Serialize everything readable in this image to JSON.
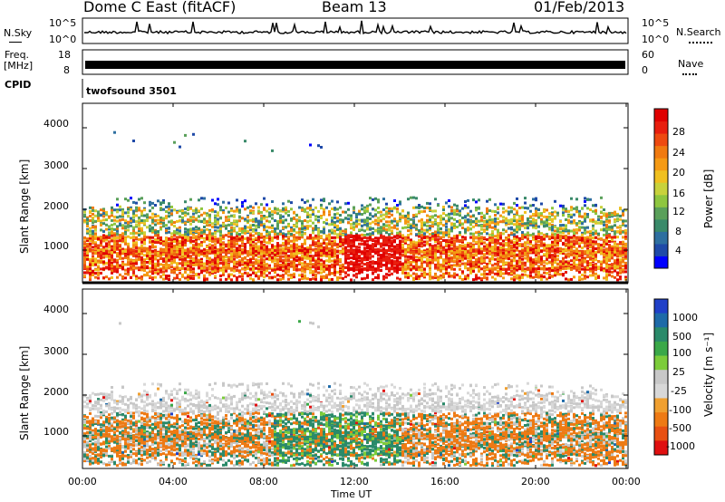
{
  "header": {
    "site": "Dome C East (fitACF)",
    "beam": "Beam 13",
    "date": "01/Feb/2013"
  },
  "strip_labels": {
    "nsky": "N.Sky",
    "nsky_hi": "10^5",
    "nsky_lo": "10^0",
    "nsearch": "N.Search",
    "nsearch_hi": "10^5",
    "nsearch_lo": "10^0",
    "freq_top": "Freq.",
    "freq_unit": "[MHz]",
    "freq_hi": "18",
    "freq_lo": "8",
    "nave": "Nave",
    "nave_hi": "60",
    "nave_lo": "0",
    "cpid": "CPID",
    "cpid_value": "twofsound 3501"
  },
  "colors": {
    "power": [
      "#0000ff",
      "#1f4aa8",
      "#2e6fa0",
      "#3a8a6a",
      "#5aa05a",
      "#8ec63f",
      "#c8d23c",
      "#f0c020",
      "#f59a14",
      "#f07a10",
      "#ee4a10",
      "#e81e0e",
      "#e00000"
    ],
    "velocity": [
      "#2040c8",
      "#1e6aa8",
      "#2a8a6a",
      "#3aa848",
      "#7ccc3a",
      "#c8c8c8",
      "#d8d8d8",
      "#f0a030",
      "#ee7a14",
      "#e85012",
      "#e01010"
    ]
  },
  "chart_data": [
    {
      "type": "heatmap",
      "title": "",
      "xlabel": "Time UT",
      "ylabel": "Slant Range [km]",
      "x_ticks": [
        "00:00",
        "04:00",
        "08:00",
        "12:00",
        "16:00",
        "20:00",
        "00:00"
      ],
      "y_ticks": [
        1000,
        2000,
        3000,
        4000
      ],
      "ylim": [
        200,
        4600
      ],
      "colorbar": {
        "label": "Power [dB]",
        "ticks": [
          4,
          8,
          12,
          16,
          20,
          24,
          28
        ],
        "range": [
          0,
          30
        ]
      }
    },
    {
      "type": "heatmap",
      "title": "",
      "xlabel": "Time UT",
      "ylabel": "Slant Range [km]",
      "x_ticks": [
        "00:00",
        "04:00",
        "08:00",
        "12:00",
        "16:00",
        "20:00",
        "00:00"
      ],
      "y_ticks": [
        1000,
        2000,
        3000,
        4000
      ],
      "ylim": [
        200,
        4600
      ],
      "colorbar": {
        "label": "Velocity [m s⁻¹]",
        "ticks": [
          1000,
          500,
          100,
          25,
          -25,
          -100,
          -500,
          -1000
        ]
      }
    }
  ],
  "axis": {
    "xlabel": "Time UT"
  }
}
